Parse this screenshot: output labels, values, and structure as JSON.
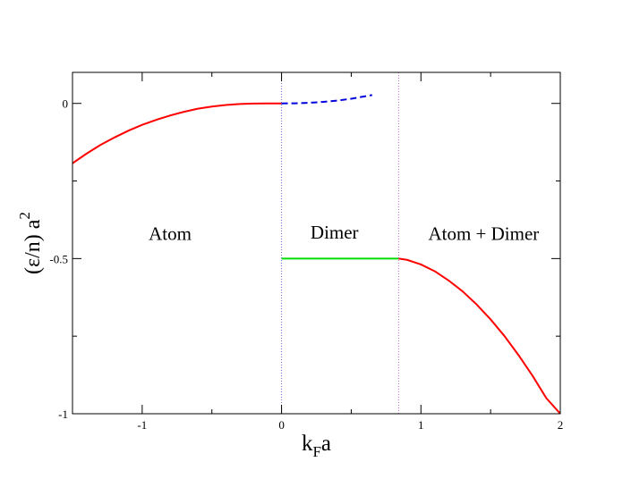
{
  "chart_data": {
    "type": "line",
    "title": "",
    "xlabel": {
      "main": "k",
      "sub": "F",
      "tail": "a"
    },
    "ylabel": {
      "main": "(ε/n) a",
      "sup": "2"
    },
    "xlim": [
      -1.5,
      2.0
    ],
    "ylim": [
      -1.0,
      0.1
    ],
    "x_ticks": [
      {
        "value": -1,
        "label": "-1"
      },
      {
        "value": 0,
        "label": "0"
      },
      {
        "value": 1,
        "label": "1"
      },
      {
        "value": 2,
        "label": "2"
      }
    ],
    "y_ticks": [
      {
        "value": 0,
        "label": "0"
      },
      {
        "value": -0.5,
        "label": "-0.5"
      },
      {
        "value": -1,
        "label": "-1"
      }
    ],
    "x_minor_ticks": [
      -1.5,
      -0.5,
      0.5,
      1.5
    ],
    "y_minor_ticks": [
      -0.75,
      -0.25
    ],
    "grid": false,
    "series": [
      {
        "style": "solid",
        "color": "#ff0000",
        "x": [
          -1.5,
          -1.4,
          -1.3,
          -1.2,
          -1.1,
          -1.0,
          -0.9,
          -0.8,
          -0.7,
          -0.6,
          -0.5,
          -0.4,
          -0.3,
          -0.2,
          -0.1,
          0.0
        ],
        "y": [
          -0.193,
          -0.162,
          -0.134,
          -0.11,
          -0.088,
          -0.069,
          -0.053,
          -0.039,
          -0.027,
          -0.017,
          -0.01,
          -0.005,
          -0.002,
          -0.0005,
          0.0,
          0.0
        ]
      },
      {
        "style": "dashed",
        "color": "#0000dd",
        "x": [
          0.0,
          0.1,
          0.2,
          0.3,
          0.4,
          0.5,
          0.6,
          0.65
        ],
        "y": [
          0.0,
          0.0003,
          0.002,
          0.005,
          0.009,
          0.015,
          0.023,
          0.027
        ]
      },
      {
        "style": "solid",
        "color": "#00dd00",
        "x": [
          0.0,
          0.84
        ],
        "y": [
          -0.5,
          -0.5
        ]
      },
      {
        "style": "solid",
        "color": "#ff0000",
        "x": [
          0.84,
          0.9,
          1.0,
          1.1,
          1.2,
          1.3,
          1.4,
          1.5,
          1.6,
          1.7,
          1.8,
          1.9,
          2.0
        ],
        "y": [
          -0.5,
          -0.504,
          -0.519,
          -0.541,
          -0.571,
          -0.606,
          -0.648,
          -0.696,
          -0.75,
          -0.811,
          -0.877,
          -0.95,
          -1.0
        ]
      }
    ],
    "vertical_lines": [
      {
        "x": 0.0,
        "color": "#6666dd",
        "style": "dotted"
      },
      {
        "x": 0.84,
        "color": "#bb66cc",
        "style": "dotted"
      }
    ],
    "annotations": [
      {
        "text": "Atom",
        "x": -0.8,
        "y": -0.44
      },
      {
        "text": "Dimer",
        "x": 0.38,
        "y": -0.435
      },
      {
        "text": "Atom + Dimer",
        "x": 1.45,
        "y": -0.44
      }
    ]
  }
}
